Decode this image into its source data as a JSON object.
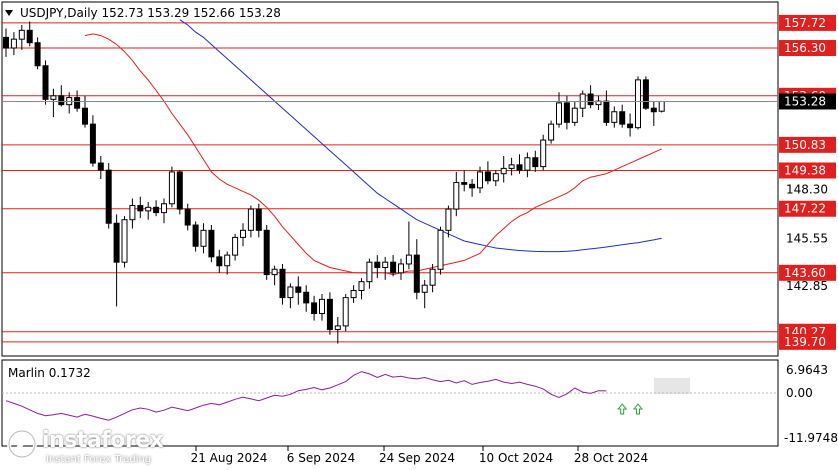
{
  "header": {
    "symbol_line": "USDJPY,Daily  152.73 153.29 152.66 153.28"
  },
  "indicator": {
    "label": "Marlin 0.1732",
    "scale_top": "6.9643",
    "scale_zero": "0.00",
    "scale_bottom": "-11.9748"
  },
  "logo": {
    "name": "instaforex",
    "tagline": "Instant Forex Trading"
  },
  "colors": {
    "level_line": "#e0201e",
    "level_label_bg": "#e0201e",
    "ma_red": "#e0201e",
    "ma_blue": "#1f2fbd",
    "oscillator": "#8a1f9a",
    "arrow_green": "#2aa33a",
    "price_label_bg": "#000000"
  },
  "chart_data": {
    "type": "candlestick",
    "title": "USDJPY,Daily",
    "ohlc_header": [
      152.73,
      153.29,
      152.66,
      153.28
    ],
    "ylim": [
      138.9,
      158.9
    ],
    "x_tick_labels": [
      "21 Aug 2024",
      "6 Sep 2024",
      "24 Sep 2024",
      "10 Oct 2024",
      "28 Oct 2024"
    ],
    "y_tick_labels": [
      "148.30",
      "145.55",
      "142.85"
    ],
    "current_price": 153.28,
    "levels": [
      157.72,
      156.3,
      153.6,
      150.83,
      149.38,
      147.22,
      143.6,
      140.27,
      139.7
    ],
    "candles": [
      [
        156.9,
        157.4,
        155.8,
        156.3
      ],
      [
        156.3,
        157.2,
        155.9,
        156.8
      ],
      [
        156.8,
        157.6,
        156.2,
        157.3
      ],
      [
        157.3,
        157.8,
        156.4,
        156.6
      ],
      [
        156.6,
        156.9,
        155.1,
        155.3
      ],
      [
        155.3,
        155.6,
        153.1,
        153.4
      ],
      [
        153.4,
        154.0,
        152.4,
        153.6
      ],
      [
        153.6,
        154.2,
        153.0,
        153.1
      ],
      [
        153.1,
        153.8,
        152.6,
        153.5
      ],
      [
        153.5,
        153.9,
        152.7,
        152.9
      ],
      [
        152.9,
        153.6,
        151.8,
        152.0
      ],
      [
        152.0,
        152.5,
        149.6,
        149.8
      ],
      [
        149.8,
        150.2,
        148.9,
        149.4
      ],
      [
        149.4,
        149.8,
        146.1,
        146.4
      ],
      [
        146.4,
        146.9,
        141.7,
        144.2
      ],
      [
        144.2,
        146.8,
        143.9,
        146.6
      ],
      [
        146.6,
        147.8,
        146.1,
        147.4
      ],
      [
        147.4,
        147.9,
        146.7,
        147.1
      ],
      [
        147.1,
        147.6,
        146.6,
        147.3
      ],
      [
        147.3,
        147.7,
        146.8,
        147.0
      ],
      [
        147.0,
        147.8,
        146.4,
        147.5
      ],
      [
        147.5,
        149.6,
        147.3,
        149.3
      ],
      [
        149.3,
        149.4,
        146.9,
        147.2
      ],
      [
        147.2,
        147.5,
        146.0,
        146.3
      ],
      [
        146.3,
        146.5,
        144.8,
        145.1
      ],
      [
        145.1,
        146.4,
        144.7,
        146.0
      ],
      [
        146.0,
        146.3,
        144.2,
        144.5
      ],
      [
        144.5,
        144.9,
        143.6,
        144.0
      ],
      [
        144.0,
        144.8,
        143.5,
        144.6
      ],
      [
        144.6,
        145.8,
        144.3,
        145.6
      ],
      [
        145.6,
        146.4,
        145.1,
        146.0
      ],
      [
        146.0,
        147.4,
        145.6,
        147.2
      ],
      [
        147.2,
        147.5,
        145.6,
        146.0
      ],
      [
        146.0,
        146.3,
        143.2,
        143.5
      ],
      [
        143.5,
        144.0,
        142.9,
        143.8
      ],
      [
        143.8,
        144.1,
        141.8,
        142.2
      ],
      [
        142.2,
        143.0,
        141.6,
        142.8
      ],
      [
        142.8,
        143.4,
        141.8,
        142.5
      ],
      [
        142.5,
        142.9,
        141.4,
        141.9
      ],
      [
        141.9,
        142.3,
        140.9,
        141.3
      ],
      [
        141.3,
        142.4,
        140.9,
        142.1
      ],
      [
        142.1,
        142.5,
        140.1,
        140.4
      ],
      [
        140.4,
        141.1,
        139.6,
        140.6
      ],
      [
        140.6,
        142.4,
        140.3,
        142.2
      ],
      [
        142.2,
        142.9,
        141.9,
        142.6
      ],
      [
        142.6,
        143.3,
        142.1,
        143.1
      ],
      [
        143.1,
        144.4,
        142.7,
        144.2
      ],
      [
        144.2,
        144.6,
        143.3,
        143.9
      ],
      [
        143.9,
        144.5,
        143.2,
        144.2
      ],
      [
        144.2,
        144.6,
        143.4,
        143.6
      ],
      [
        143.6,
        144.4,
        143.2,
        144.1
      ],
      [
        144.1,
        146.5,
        143.8,
        144.6
      ],
      [
        144.6,
        145.5,
        142.1,
        142.5
      ],
      [
        142.5,
        143.2,
        141.6,
        142.9
      ],
      [
        142.9,
        144.1,
        142.5,
        143.8
      ],
      [
        143.8,
        146.2,
        143.5,
        146.0
      ],
      [
        146.0,
        147.4,
        145.6,
        147.2
      ],
      [
        147.2,
        149.3,
        146.8,
        148.7
      ],
      [
        148.7,
        149.4,
        148.2,
        148.6
      ],
      [
        148.6,
        148.9,
        147.9,
        148.4
      ],
      [
        148.4,
        149.6,
        148.1,
        149.3
      ],
      [
        149.3,
        149.9,
        148.6,
        148.8
      ],
      [
        148.8,
        149.4,
        148.5,
        149.2
      ],
      [
        149.2,
        150.2,
        148.7,
        149.5
      ],
      [
        149.5,
        150.1,
        149.1,
        149.7
      ],
      [
        149.7,
        150.3,
        149.2,
        149.4
      ],
      [
        149.4,
        150.4,
        149.0,
        150.1
      ],
      [
        150.1,
        150.5,
        149.3,
        149.6
      ],
      [
        149.6,
        151.4,
        149.4,
        151.1
      ],
      [
        151.1,
        152.2,
        150.9,
        152.0
      ],
      [
        152.0,
        153.8,
        151.8,
        153.2
      ],
      [
        153.2,
        153.6,
        151.7,
        152.1
      ],
      [
        152.1,
        153.3,
        151.9,
        152.9
      ],
      [
        152.9,
        153.9,
        152.4,
        153.7
      ],
      [
        153.7,
        154.2,
        152.9,
        153.1
      ],
      [
        153.1,
        153.6,
        152.8,
        153.3
      ],
      [
        153.3,
        153.9,
        151.9,
        152.1
      ],
      [
        152.1,
        153.0,
        151.8,
        152.7
      ],
      [
        152.7,
        153.1,
        151.8,
        152.0
      ],
      [
        152.0,
        152.6,
        151.3,
        151.8
      ],
      [
        151.8,
        154.7,
        151.7,
        154.5
      ],
      [
        154.5,
        154.7,
        152.8,
        152.9
      ],
      [
        152.9,
        153.3,
        151.9,
        152.7
      ],
      [
        152.73,
        153.29,
        152.66,
        153.28
      ]
    ],
    "ma_red": [
      157.0,
      157.1,
      157.0,
      156.8,
      156.5,
      156.1,
      155.6,
      155.0,
      154.5,
      153.9,
      153.3,
      152.6,
      152.0,
      151.4,
      150.7,
      150.0,
      149.3,
      148.9,
      148.6,
      148.4,
      148.2,
      148.0,
      147.7,
      147.3,
      146.8,
      146.2,
      145.7,
      145.2,
      144.7,
      144.3,
      144.1,
      143.9,
      143.8,
      143.7,
      143.6,
      143.6,
      143.6,
      143.6,
      143.6,
      143.5,
      143.6,
      143.7,
      143.7,
      143.8,
      143.9,
      144.0,
      144.1,
      144.2,
      144.3,
      144.5,
      144.7,
      145.2,
      145.7,
      146.1,
      146.5,
      146.8,
      147.0,
      147.3,
      147.5,
      147.7,
      147.9,
      148.1,
      148.4,
      148.8,
      149.0,
      149.1,
      149.2,
      149.4,
      149.6,
      149.8,
      150.0,
      150.2,
      150.4,
      150.6
    ],
    "ma_blue": [
      157.9,
      157.6,
      157.2,
      156.9,
      156.5,
      156.1,
      155.7,
      155.3,
      154.9,
      154.5,
      154.1,
      153.7,
      153.3,
      152.9,
      152.5,
      152.1,
      151.7,
      151.3,
      150.9,
      150.5,
      150.1,
      149.7,
      149.3,
      148.9,
      148.5,
      148.1,
      147.8,
      147.5,
      147.2,
      146.9,
      146.6,
      146.4,
      146.2,
      146.0,
      145.8,
      145.6,
      145.4,
      145.3,
      145.2,
      145.1,
      145.0,
      144.95,
      144.9,
      144.86,
      144.83,
      144.81,
      144.8,
      144.8,
      144.8,
      144.82,
      144.85,
      144.9,
      144.95,
      145.0,
      145.06,
      145.12,
      145.18,
      145.25,
      145.3,
      145.38,
      145.46,
      145.55
    ],
    "oscillator": {
      "name": "Marlin",
      "current": 0.1732,
      "ylim": [
        -11.9748,
        6.9643
      ],
      "values": [
        -2.0,
        -2.6,
        -3.2,
        -4.0,
        -4.8,
        -5.3,
        -5.1,
        -4.8,
        -5.2,
        -5.6,
        -5.0,
        -5.4,
        -5.9,
        -6.3,
        -5.6,
        -4.8,
        -4.0,
        -3.6,
        -3.9,
        -4.5,
        -4.1,
        -3.4,
        -3.8,
        -4.2,
        -3.6,
        -3.0,
        -2.6,
        -2.9,
        -2.3,
        -1.7,
        -1.2,
        -1.6,
        -2.0,
        -1.4,
        -0.8,
        -1.0,
        -0.6,
        0.2,
        0.5,
        0.9,
        0.4,
        0.8,
        1.5,
        2.2,
        3.6,
        4.4,
        3.9,
        3.1,
        3.8,
        3.2,
        3.4,
        3.0,
        2.8,
        3.1,
        2.6,
        2.2,
        2.5,
        1.9,
        2.4,
        1.6,
        2.0,
        2.3,
        2.7,
        2.1,
        1.8,
        2.1,
        1.6,
        1.2,
        0.6,
        -0.6,
        -1.3,
        -0.5,
        0.8,
        -0.1,
        -0.4,
        0.2,
        0.17
      ],
      "arrows": [
        78,
        80
      ]
    }
  }
}
